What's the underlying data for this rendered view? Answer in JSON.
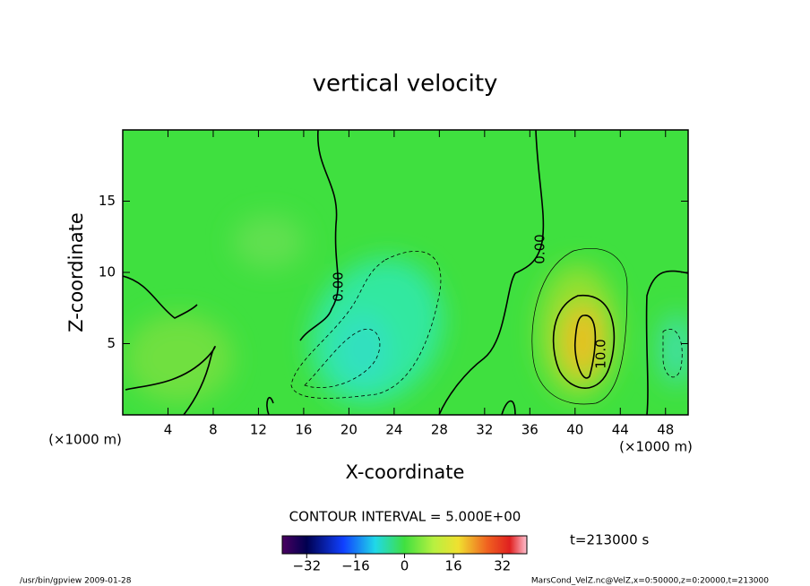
{
  "chart_data": {
    "type": "contour",
    "title": "vertical velocity",
    "xlabel": "X-coordinate",
    "ylabel": "Z-coordinate",
    "x_units": [
      "(×1000 m)",
      "(×1000 m)"
    ],
    "xlim": [
      0,
      50
    ],
    "ylim": [
      0,
      20
    ],
    "xticks": [
      4,
      8,
      12,
      16,
      20,
      24,
      28,
      32,
      36,
      40,
      44,
      48
    ],
    "yticks": [
      5,
      10,
      15
    ],
    "contour_labels": [
      "0.00",
      "0.00",
      "10.0"
    ],
    "contour_interval": "CONTOUR INTERVAL = 5.000E+00",
    "colorbar": {
      "lim": [
        -40,
        40
      ],
      "ticks": [
        {
          "value": -32,
          "label": "−32"
        },
        {
          "value": -16,
          "label": "−16"
        },
        0,
        16,
        32
      ]
    },
    "time_label": "t=213000 s",
    "footer_left": "/usr/bin/gpview  2009-01-28",
    "footer_right": "MarsCond_VelZ.nc@VelZ,x=0:50000,z=0:20000,t=213000"
  }
}
